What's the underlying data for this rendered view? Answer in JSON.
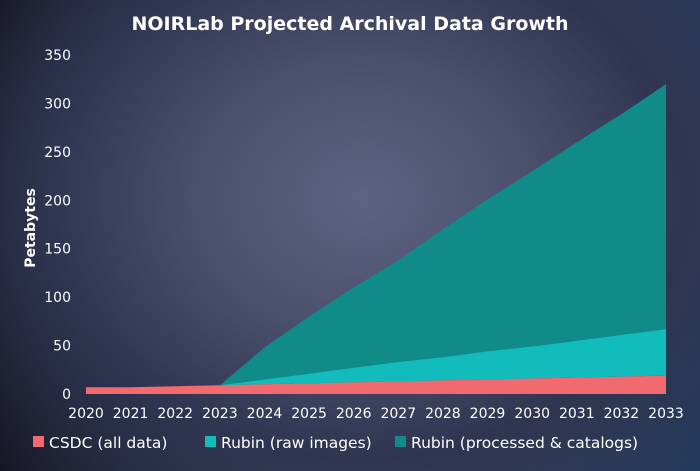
{
  "chart_data": {
    "type": "area",
    "stacked": true,
    "title": "NOIRLab Projected Archival Data Growth",
    "xlabel": "",
    "ylabel": "Petabytes",
    "ylim": [
      0,
      350
    ],
    "yticks": [
      0,
      50,
      100,
      150,
      200,
      250,
      300,
      350
    ],
    "x": [
      "2020",
      "2021",
      "2022",
      "2023",
      "2024",
      "2025",
      "2026",
      "2027",
      "2028",
      "2029",
      "2030",
      "2031",
      "2032",
      "2033"
    ],
    "grid": false,
    "legend_position": "bottom",
    "series": [
      {
        "name": "CSDC (all data)",
        "color": "#f06a6f",
        "values": [
          7,
          7,
          8,
          9,
          10,
          11,
          12,
          13,
          14,
          15,
          16,
          17,
          18,
          19
        ]
      },
      {
        "name": "Rubin (raw images)",
        "color": "#12bcbc",
        "values": [
          0,
          0,
          0,
          0,
          5,
          10,
          15,
          20,
          24,
          29,
          33,
          38,
          43,
          48
        ]
      },
      {
        "name": "Rubin (processed & catalogs)",
        "color": "#108b88",
        "values": [
          0,
          0,
          0,
          0,
          33,
          59,
          83,
          105,
          132,
          157,
          181,
          205,
          228,
          253
        ]
      }
    ]
  }
}
